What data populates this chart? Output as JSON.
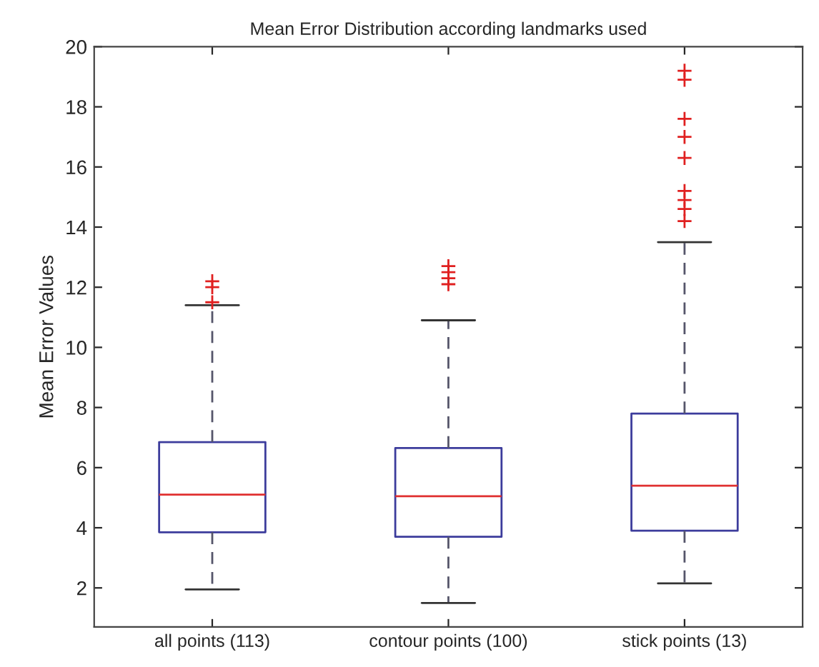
{
  "chart_data": {
    "type": "box",
    "title": "Mean Error Distribution according landmarks used",
    "ylabel": "Mean Error Values",
    "categories": [
      "all points (113)",
      "contour points (100)",
      "stick points (13)"
    ],
    "boxes": [
      {
        "low": 1.95,
        "q1": 3.85,
        "median": 5.1,
        "q3": 6.85,
        "high": 11.4,
        "outliers": [
          11.5,
          12.0,
          12.2
        ]
      },
      {
        "low": 1.5,
        "q1": 3.7,
        "median": 5.05,
        "q3": 6.65,
        "high": 10.9,
        "outliers": [
          12.1,
          12.3,
          12.5,
          12.7
        ]
      },
      {
        "low": 2.15,
        "q1": 3.9,
        "median": 5.4,
        "q3": 7.8,
        "high": 13.5,
        "outliers": [
          14.2,
          14.6,
          14.9,
          15.2,
          16.3,
          17.0,
          17.6,
          18.9,
          19.2
        ]
      }
    ],
    "color": "#3c3c9c",
    "ylim": [
      0.7,
      20
    ],
    "yticks": [
      2,
      4,
      6,
      8,
      10,
      12,
      14,
      16,
      18,
      20
    ],
    "marker": "cross",
    "grid": false
  }
}
